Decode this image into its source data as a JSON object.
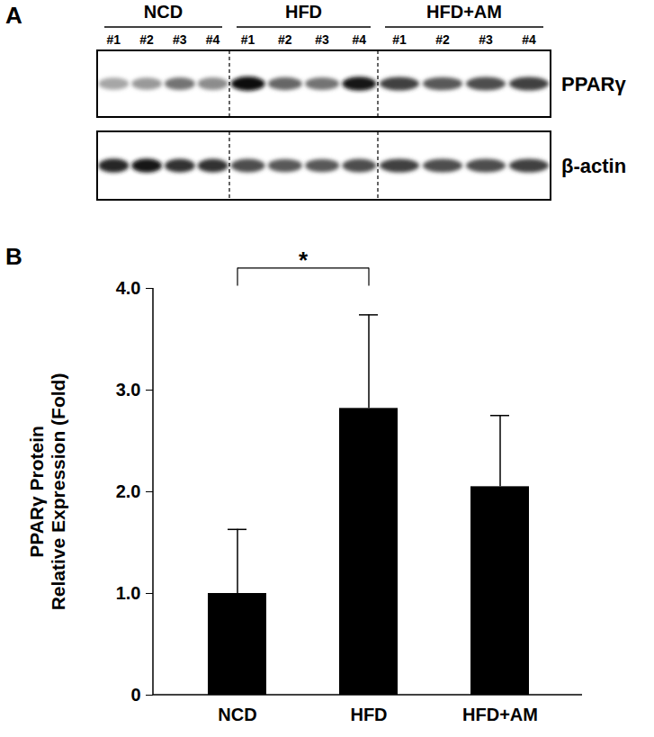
{
  "chart_data": {
    "type": "bar",
    "panel_label": "B",
    "categories": [
      "NCD",
      "HFD",
      "HFD+AM"
    ],
    "values": [
      1.0,
      2.82,
      2.05
    ],
    "errors": [
      0.63,
      0.92,
      0.7
    ],
    "color": "#000000",
    "ylabel": "PPARγ Protein\nRelative Expression (Fold)",
    "ylim": [
      0,
      4
    ],
    "yticks": [
      0,
      {
        "value": 1,
        "label": "1.0"
      },
      {
        "value": 2,
        "label": "2.0"
      },
      {
        "value": 3,
        "label": "3.0"
      },
      {
        "value": 4,
        "label": "4.0"
      }
    ],
    "annotations": [
      {
        "text": "*",
        "x1": "NCD",
        "x2": "HFD",
        "y": 4.2
      }
    ]
  },
  "blot": {
    "panel_label": "A",
    "groups": [
      {
        "label": "NCD",
        "lanes": [
          "#1",
          "#2",
          "#3",
          "#4"
        ]
      },
      {
        "label": "HFD",
        "lanes": [
          "#1",
          "#2",
          "#3",
          "#4"
        ]
      },
      {
        "label": "HFD+AM",
        "lanes": [
          "#1",
          "#2",
          "#3",
          "#4"
        ]
      }
    ],
    "rows": [
      {
        "label": "PPARγ",
        "band_intensity": [
          0.35,
          0.4,
          0.55,
          0.45,
          0.95,
          0.6,
          0.55,
          0.9,
          0.75,
          0.65,
          0.7,
          0.75
        ]
      },
      {
        "label": "β-actin",
        "band_intensity": [
          0.85,
          0.9,
          0.8,
          0.8,
          0.7,
          0.65,
          0.65,
          0.7,
          0.75,
          0.7,
          0.7,
          0.75
        ]
      }
    ]
  }
}
